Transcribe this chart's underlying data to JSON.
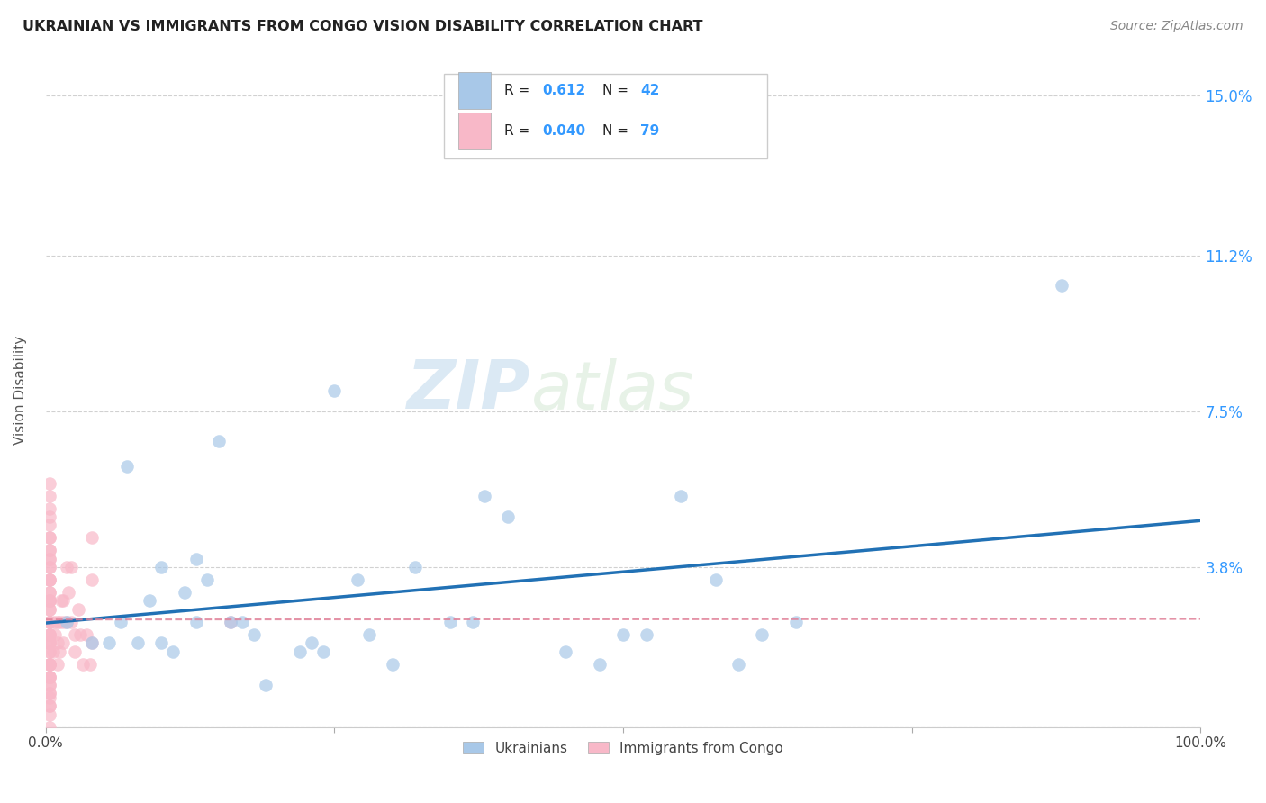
{
  "title": "UKRAINIAN VS IMMIGRANTS FROM CONGO VISION DISABILITY CORRELATION CHART",
  "source": "Source: ZipAtlas.com",
  "ylabel": "Vision Disability",
  "xlim": [
    0,
    1.0
  ],
  "ylim": [
    0,
    0.16
  ],
  "ytick_positions": [
    0.0,
    0.038,
    0.075,
    0.112,
    0.15
  ],
  "ytick_labels": [
    "",
    "3.8%",
    "7.5%",
    "11.2%",
    "15.0%"
  ],
  "background_color": "#ffffff",
  "grid_color": "#cccccc",
  "watermark_zip": "ZIP",
  "watermark_atlas": "atlas",
  "blue_color": "#a8c8e8",
  "pink_color": "#f8b8c8",
  "line_blue": "#2171b5",
  "line_pink": "#e08098",
  "value_color": "#3399ff",
  "ukrainians_x": [
    0.018,
    0.04,
    0.055,
    0.065,
    0.07,
    0.08,
    0.09,
    0.1,
    0.1,
    0.11,
    0.12,
    0.13,
    0.13,
    0.14,
    0.15,
    0.16,
    0.17,
    0.18,
    0.19,
    0.22,
    0.23,
    0.24,
    0.25,
    0.27,
    0.28,
    0.3,
    0.32,
    0.35,
    0.37,
    0.38,
    0.4,
    0.45,
    0.48,
    0.5,
    0.52,
    0.55,
    0.58,
    0.6,
    0.62,
    0.65,
    0.88
  ],
  "ukrainians_y": [
    0.025,
    0.02,
    0.02,
    0.025,
    0.062,
    0.02,
    0.03,
    0.038,
    0.02,
    0.018,
    0.032,
    0.04,
    0.025,
    0.035,
    0.068,
    0.025,
    0.025,
    0.022,
    0.01,
    0.018,
    0.02,
    0.018,
    0.08,
    0.035,
    0.022,
    0.015,
    0.038,
    0.025,
    0.025,
    0.055,
    0.05,
    0.018,
    0.015,
    0.022,
    0.022,
    0.055,
    0.035,
    0.015,
    0.022,
    0.025,
    0.105
  ],
  "congo_x": [
    0.003,
    0.003,
    0.003,
    0.003,
    0.003,
    0.003,
    0.003,
    0.003,
    0.003,
    0.003,
    0.003,
    0.003,
    0.003,
    0.003,
    0.003,
    0.003,
    0.003,
    0.003,
    0.003,
    0.003,
    0.003,
    0.003,
    0.003,
    0.003,
    0.003,
    0.003,
    0.003,
    0.003,
    0.003,
    0.003,
    0.003,
    0.003,
    0.003,
    0.003,
    0.003,
    0.003,
    0.003,
    0.003,
    0.003,
    0.003,
    0.003,
    0.003,
    0.003,
    0.003,
    0.003,
    0.003,
    0.003,
    0.003,
    0.003,
    0.003,
    0.003,
    0.006,
    0.007,
    0.008,
    0.01,
    0.01,
    0.01,
    0.012,
    0.012,
    0.013,
    0.015,
    0.015,
    0.015,
    0.018,
    0.018,
    0.02,
    0.022,
    0.022,
    0.025,
    0.025,
    0.028,
    0.03,
    0.032,
    0.035,
    0.038,
    0.04,
    0.04,
    0.04,
    0.16
  ],
  "congo_y": [
    0.0,
    0.003,
    0.005,
    0.005,
    0.007,
    0.008,
    0.008,
    0.01,
    0.01,
    0.012,
    0.012,
    0.012,
    0.015,
    0.015,
    0.015,
    0.015,
    0.018,
    0.018,
    0.02,
    0.02,
    0.02,
    0.022,
    0.022,
    0.022,
    0.025,
    0.025,
    0.025,
    0.025,
    0.028,
    0.028,
    0.03,
    0.03,
    0.03,
    0.032,
    0.032,
    0.035,
    0.035,
    0.035,
    0.038,
    0.038,
    0.04,
    0.04,
    0.042,
    0.042,
    0.045,
    0.045,
    0.048,
    0.05,
    0.052,
    0.055,
    0.058,
    0.018,
    0.025,
    0.022,
    0.015,
    0.02,
    0.025,
    0.018,
    0.025,
    0.03,
    0.02,
    0.025,
    0.03,
    0.025,
    0.038,
    0.032,
    0.025,
    0.038,
    0.018,
    0.022,
    0.028,
    0.022,
    0.015,
    0.022,
    0.015,
    0.02,
    0.035,
    0.045,
    0.025
  ]
}
